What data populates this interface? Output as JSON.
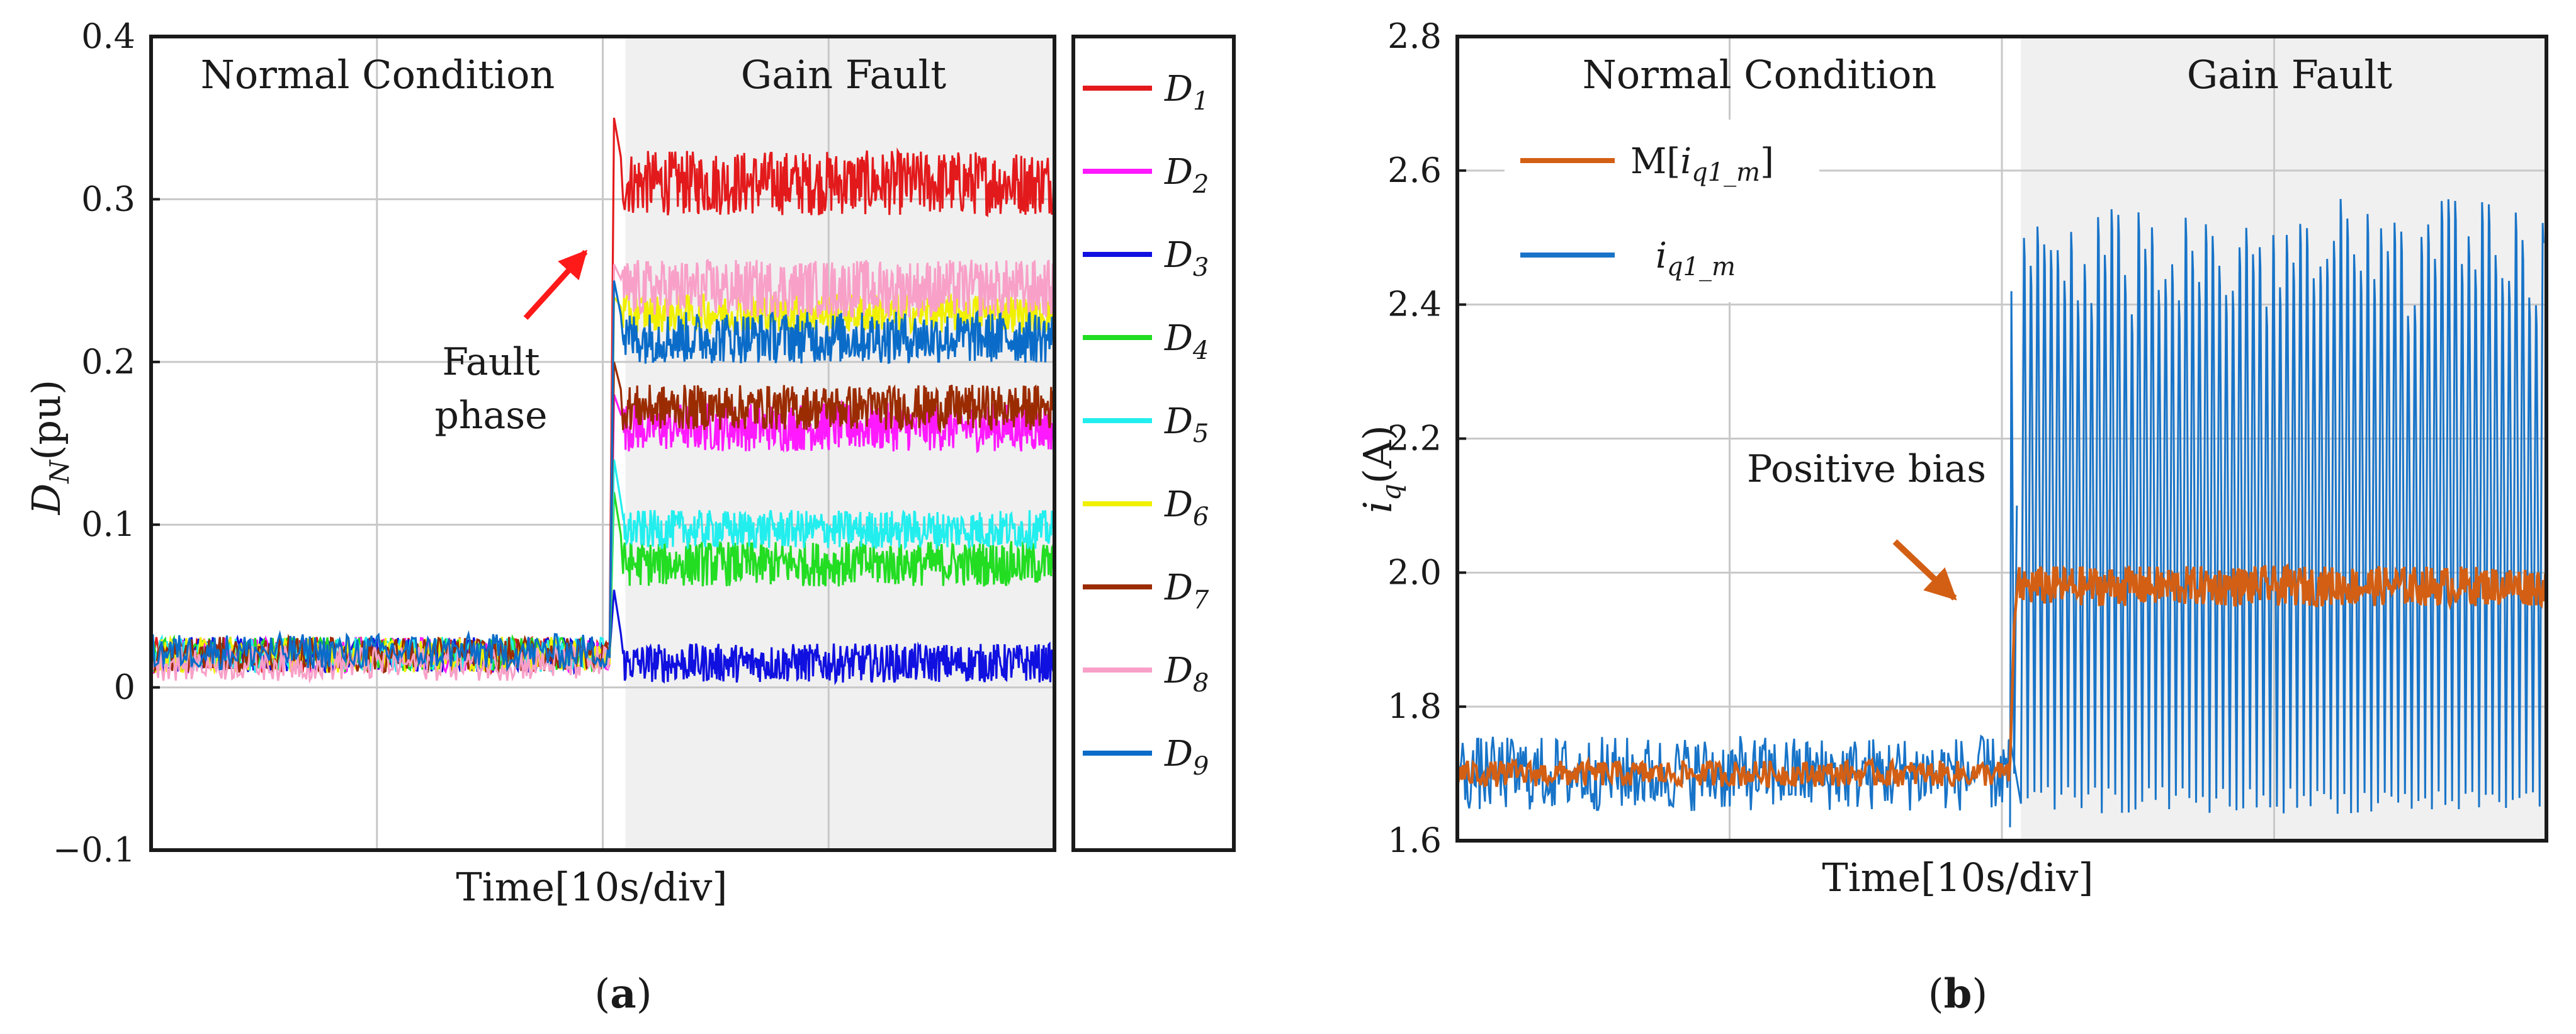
{
  "chart_data": [
    {
      "type": "line",
      "panel": "a",
      "caption": "a",
      "title": "",
      "xlabel": "Time[10s/div]",
      "ylabel_main": "D",
      "ylabel_sub": "N",
      "ylabel_unit": "(pu)",
      "xlim": [
        0,
        4
      ],
      "ylim": [
        -0.1,
        0.4
      ],
      "yticks": [
        "−0.1",
        "0",
        "0.1",
        "0.2",
        "0.3",
        "0.4"
      ],
      "ytick_values": [
        -0.1,
        0,
        0.1,
        0.2,
        0.3,
        0.4
      ],
      "fault_time": 2.03,
      "regions": [
        {
          "label": "Normal Condition",
          "from": 0,
          "to": 2.1
        },
        {
          "label": "Gain Fault",
          "from": 2.1,
          "to": 4
        }
      ],
      "annotation": {
        "line1": "Fault",
        "line2": "phase",
        "points_to": [
          1.96,
          0.27
        ]
      },
      "grid": true,
      "legend_position": "right-outside",
      "series": [
        {
          "name": "D1",
          "label_main": "D",
          "label_sub": "1",
          "color": "#e31a1c",
          "before": 0.02,
          "after": 0.31,
          "noise": 0.02,
          "overshoot": 0.35
        },
        {
          "name": "D2",
          "label_main": "D",
          "label_sub": "2",
          "color": "#ff19ff",
          "before": 0.02,
          "after": 0.16,
          "noise": 0.015,
          "overshoot": 0.18
        },
        {
          "name": "D3",
          "label_main": "D",
          "label_sub": "3",
          "color": "#1010e0",
          "before": 0.02,
          "after": 0.015,
          "noise": 0.012,
          "overshoot": 0.06
        },
        {
          "name": "D4",
          "label_main": "D",
          "label_sub": "4",
          "color": "#22dd22",
          "before": 0.02,
          "after": 0.076,
          "noise": 0.014,
          "overshoot": 0.12
        },
        {
          "name": "D5",
          "label_main": "D",
          "label_sub": "5",
          "color": "#22eeee",
          "before": 0.02,
          "after": 0.097,
          "noise": 0.012,
          "overshoot": 0.14
        },
        {
          "name": "D6",
          "label_main": "D",
          "label_sub": "6",
          "color": "#f0f000",
          "before": 0.02,
          "after": 0.23,
          "noise": 0.012,
          "overshoot": 0.24
        },
        {
          "name": "D7",
          "label_main": "D",
          "label_sub": "7",
          "color": "#9b2b00",
          "before": 0.02,
          "after": 0.172,
          "noise": 0.014,
          "overshoot": 0.2
        },
        {
          "name": "D8",
          "label_main": "D",
          "label_sub": "8",
          "color": "#f8a0c8",
          "before": 0.015,
          "after": 0.245,
          "noise": 0.018,
          "overshoot": 0.26
        },
        {
          "name": "D9",
          "label_main": "D",
          "label_sub": "9",
          "color": "#0a6cc8",
          "before": 0.022,
          "after": 0.215,
          "noise": 0.016,
          "overshoot": 0.25
        }
      ]
    },
    {
      "type": "line",
      "panel": "b",
      "caption": "b",
      "title": "",
      "xlabel": "Time[10s/div]",
      "ylabel_main": "i",
      "ylabel_sub": "q",
      "ylabel_unit": "(A)",
      "xlim": [
        0,
        4
      ],
      "ylim": [
        1.6,
        2.8
      ],
      "yticks": [
        "1.6",
        "1.8",
        "2.0",
        "2.2",
        "2.4",
        "2.6",
        "2.8"
      ],
      "ytick_values": [
        1.6,
        1.8,
        2.0,
        2.2,
        2.4,
        2.6,
        2.8
      ],
      "fault_time": 2.03,
      "regions": [
        {
          "label": "Normal Condition",
          "from": 0,
          "to": 2.07
        },
        {
          "label": "Gain Fault",
          "from": 2.07,
          "to": 4
        }
      ],
      "annotation": {
        "text": "Positive bias",
        "points_to": [
          1.85,
          1.96
        ]
      },
      "grid": true,
      "legend_position": "top-left",
      "series": [
        {
          "name": "M[iq1_m]",
          "label_prefix": "M[",
          "label_main": "i",
          "label_sub": "q1_m",
          "label_suffix": "]",
          "color": "#d35f14",
          "before": 1.7,
          "after": 1.98,
          "noise": 0.03
        },
        {
          "name": "iq1_m",
          "label_prefix": "",
          "label_main": "i",
          "label_sub": "q1_m",
          "label_suffix": "",
          "color": "#1874c8",
          "before": 1.7,
          "after_min": 1.64,
          "after_max": 2.5,
          "noise": 0.07
        }
      ]
    }
  ]
}
